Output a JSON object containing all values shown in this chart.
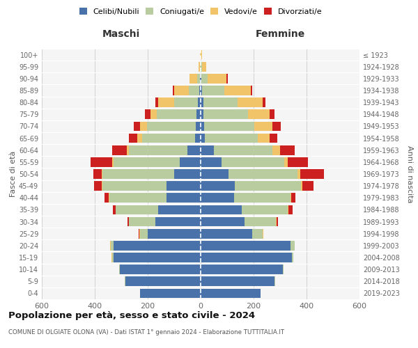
{
  "age_groups": [
    "0-4",
    "5-9",
    "10-14",
    "15-19",
    "20-24",
    "25-29",
    "30-34",
    "35-39",
    "40-44",
    "45-49",
    "50-54",
    "55-59",
    "60-64",
    "65-69",
    "70-74",
    "75-79",
    "80-84",
    "85-89",
    "90-94",
    "95-99",
    "100+"
  ],
  "birth_years": [
    "2019-2023",
    "2014-2018",
    "2009-2013",
    "2004-2008",
    "1999-2003",
    "1994-1998",
    "1989-1993",
    "1984-1988",
    "1979-1983",
    "1974-1978",
    "1969-1973",
    "1964-1968",
    "1959-1963",
    "1954-1958",
    "1949-1953",
    "1944-1948",
    "1939-1943",
    "1934-1938",
    "1929-1933",
    "1924-1928",
    "≤ 1923"
  ],
  "colors": {
    "celibi": "#4a72aa",
    "coniugati": "#b8cca0",
    "vedovi": "#f2c46a",
    "divorziati": "#cc2020"
  },
  "maschi": {
    "celibi": [
      230,
      285,
      305,
      330,
      330,
      200,
      170,
      160,
      130,
      130,
      100,
      80,
      50,
      20,
      18,
      15,
      10,
      5,
      2,
      1,
      0
    ],
    "coniugati": [
      0,
      1,
      2,
      5,
      10,
      30,
      100,
      160,
      215,
      240,
      270,
      250,
      220,
      200,
      185,
      150,
      90,
      40,
      10,
      2,
      0
    ],
    "vedovi": [
      0,
      0,
      0,
      1,
      1,
      1,
      1,
      1,
      2,
      3,
      5,
      5,
      10,
      20,
      25,
      25,
      60,
      55,
      30,
      5,
      2
    ],
    "divorziati": [
      0,
      0,
      0,
      0,
      0,
      2,
      5,
      10,
      15,
      30,
      30,
      80,
      55,
      30,
      25,
      20,
      10,
      5,
      0,
      0,
      0
    ]
  },
  "femmine": {
    "celibi": [
      225,
      280,
      310,
      345,
      340,
      195,
      165,
      155,
      125,
      130,
      105,
      80,
      50,
      15,
      12,
      10,
      10,
      5,
      2,
      1,
      0
    ],
    "coniugati": [
      0,
      1,
      2,
      5,
      15,
      40,
      120,
      175,
      215,
      250,
      260,
      235,
      220,
      200,
      190,
      170,
      130,
      85,
      25,
      5,
      0
    ],
    "vedovi": [
      0,
      0,
      0,
      0,
      1,
      1,
      1,
      2,
      3,
      5,
      10,
      15,
      30,
      45,
      70,
      80,
      95,
      100,
      70,
      15,
      5
    ],
    "divorziati": [
      0,
      0,
      0,
      0,
      0,
      2,
      5,
      15,
      15,
      40,
      90,
      75,
      55,
      30,
      30,
      20,
      10,
      5,
      5,
      0,
      0
    ]
  },
  "title": "Popolazione per età, sesso e stato civile - 2024",
  "subtitle": "COMUNE DI OLGIATE OLONA (VA) - Dati ISTAT 1° gennaio 2024 - Elaborazione TUTTITALIA.IT",
  "xlabel_left": "Maschi",
  "xlabel_right": "Femmine",
  "ylabel_left": "Fasce di età",
  "ylabel_right": "Anni di nascita",
  "xlim": 600,
  "background_color": "#ffffff",
  "plot_bg_color": "#f5f5f5",
  "grid_color": "#cccccc",
  "legend_labels": [
    "Celibi/Nubili",
    "Coniugati/e",
    "Vedovi/e",
    "Divorziati/e"
  ]
}
